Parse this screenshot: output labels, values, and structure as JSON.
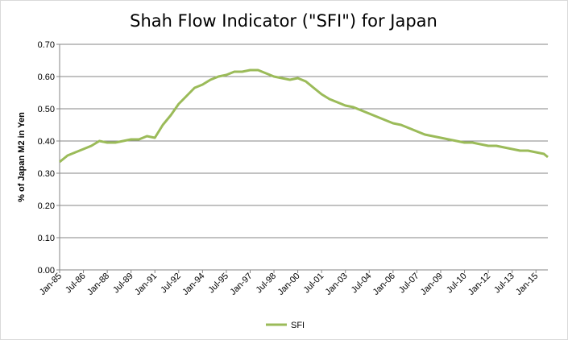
{
  "colors": {
    "series": "#9BBB59",
    "grid": "#868686",
    "axis": "#868686",
    "border": "#d9d9d9"
  },
  "chart_data": {
    "type": "line",
    "title": "Shah Flow Indicator (\"SFI\") for Japan",
    "xlabel": "",
    "ylabel": "% of Japan M2 in Yen",
    "ylim": [
      0,
      0.7
    ],
    "yticks": [
      "0.00",
      "0.10",
      "0.20",
      "0.30",
      "0.40",
      "0.50",
      "0.60",
      "0.70"
    ],
    "xlim": [
      1985.0,
      2015.75
    ],
    "xticks": [
      {
        "label": "Jan-85",
        "t": 1985.0
      },
      {
        "label": "Jul-86",
        "t": 1986.5
      },
      {
        "label": "Jan-88",
        "t": 1988.0
      },
      {
        "label": "Jul-89",
        "t": 1989.5
      },
      {
        "label": "Jan-91",
        "t": 1991.0
      },
      {
        "label": "Jul-92",
        "t": 1992.5
      },
      {
        "label": "Jan-94",
        "t": 1994.0
      },
      {
        "label": "Jul-95",
        "t": 1995.5
      },
      {
        "label": "Jan-97",
        "t": 1997.0
      },
      {
        "label": "Jul-98",
        "t": 1998.5
      },
      {
        "label": "Jan-00",
        "t": 2000.0
      },
      {
        "label": "Jul-01",
        "t": 2001.5
      },
      {
        "label": "Jan-03",
        "t": 2003.0
      },
      {
        "label": "Jul-04",
        "t": 2004.5
      },
      {
        "label": "Jan-06",
        "t": 2006.0
      },
      {
        "label": "Jul-07",
        "t": 2007.5
      },
      {
        "label": "Jan-09",
        "t": 2009.0
      },
      {
        "label": "Jul-10",
        "t": 2010.5
      },
      {
        "label": "Jan-12",
        "t": 2012.0
      },
      {
        "label": "Jul-13",
        "t": 2013.5
      },
      {
        "label": "Jan-15",
        "t": 2015.0
      }
    ],
    "grid": true,
    "legend": "bottom",
    "series": [
      {
        "name": "SFI",
        "x": [
          1985.0,
          1985.5,
          1986.0,
          1986.5,
          1987.0,
          1987.5,
          1988.0,
          1988.5,
          1989.0,
          1989.5,
          1990.0,
          1990.5,
          1991.0,
          1991.5,
          1992.0,
          1992.5,
          1993.0,
          1993.5,
          1994.0,
          1994.5,
          1995.0,
          1995.5,
          1996.0,
          1996.5,
          1997.0,
          1997.5,
          1998.0,
          1998.5,
          1999.0,
          1999.5,
          2000.0,
          2000.5,
          2001.0,
          2001.5,
          2002.0,
          2002.5,
          2003.0,
          2003.5,
          2004.0,
          2004.5,
          2005.0,
          2005.5,
          2006.0,
          2006.5,
          2007.0,
          2007.5,
          2008.0,
          2008.5,
          2009.0,
          2009.5,
          2010.0,
          2010.5,
          2011.0,
          2011.5,
          2012.0,
          2012.5,
          2013.0,
          2013.5,
          2014.0,
          2014.5,
          2015.0,
          2015.5,
          2015.75
        ],
        "y": [
          0.335,
          0.355,
          0.365,
          0.375,
          0.385,
          0.4,
          0.395,
          0.395,
          0.4,
          0.405,
          0.405,
          0.415,
          0.41,
          0.45,
          0.48,
          0.515,
          0.54,
          0.565,
          0.575,
          0.59,
          0.6,
          0.605,
          0.615,
          0.615,
          0.62,
          0.62,
          0.61,
          0.6,
          0.595,
          0.59,
          0.595,
          0.585,
          0.565,
          0.545,
          0.53,
          0.52,
          0.51,
          0.505,
          0.495,
          0.485,
          0.475,
          0.465,
          0.455,
          0.45,
          0.44,
          0.43,
          0.42,
          0.415,
          0.41,
          0.405,
          0.4,
          0.395,
          0.395,
          0.39,
          0.385,
          0.385,
          0.38,
          0.375,
          0.37,
          0.37,
          0.365,
          0.36,
          0.35
        ]
      }
    ]
  }
}
